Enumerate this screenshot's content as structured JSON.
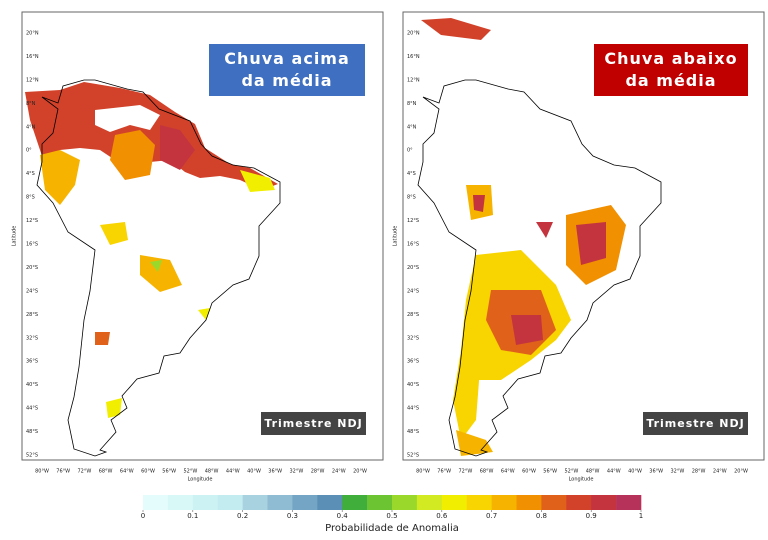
{
  "panels": [
    {
      "title": "Chuva acima da média",
      "period": "Trimestre NDJ"
    },
    {
      "title": "Chuva abaixo da média",
      "period": "Trimestre NDJ"
    }
  ],
  "axes": {
    "x_label": "Longitude",
    "y_label": "Latitude",
    "lon_ticks": [
      "80°W",
      "76°W",
      "72°W",
      "68°W",
      "64°W",
      "60°W",
      "56°W",
      "52°W",
      "48°W",
      "44°W",
      "40°W",
      "36°W",
      "32°W",
      "28°W",
      "24°W",
      "20°W"
    ],
    "lat_ticks": [
      "20°N",
      "16°N",
      "12°N",
      "8°N",
      "4°N",
      "0°",
      "4°S",
      "8°S",
      "12°S",
      "16°S",
      "20°S",
      "24°S",
      "28°S",
      "32°S",
      "36°S",
      "40°S",
      "44°S",
      "48°S",
      "52°S"
    ]
  },
  "colorbar": {
    "label": "Probabilidade de Anomalia",
    "ticks": [
      0,
      0.1,
      0.2,
      0.3,
      0.4,
      0.5,
      0.6,
      0.7,
      0.8,
      0.9,
      1
    ],
    "colors": [
      "#e4fcfc",
      "#d8f8f8",
      "#cdf2f4",
      "#c2ecf0",
      "#a9d2e0",
      "#8fbcd2",
      "#74a5c4",
      "#5b8fb6",
      "#3fae3a",
      "#6cc433",
      "#9ad82c",
      "#d2ea22",
      "#f2ee00",
      "#f8d400",
      "#f6b400",
      "#f19000",
      "#e0621a",
      "#d2422a",
      "#c4343e",
      "#b7325a"
    ]
  }
}
